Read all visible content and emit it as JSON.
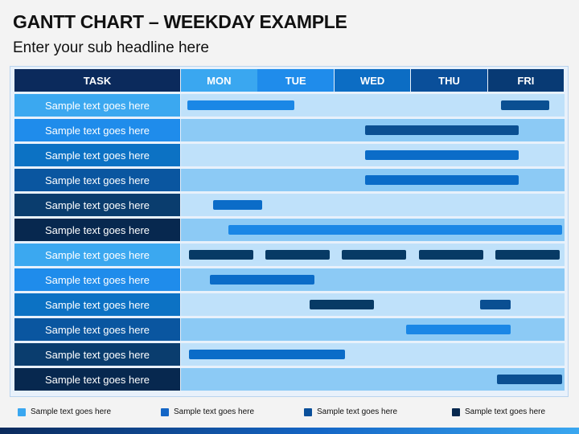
{
  "title": "GANTT CHART – WEEKDAY EXAMPLE",
  "subtitle": "Enter your sub headline here",
  "header": {
    "task": "TASK",
    "days": [
      "MON",
      "TUE",
      "WED",
      "THU",
      "FRI"
    ]
  },
  "colors": {
    "header_days": [
      "#3aa7f0",
      "#1f8ceb",
      "#0c6dc4",
      "#0a4f9a",
      "#083a74"
    ],
    "label_rows": [
      "#3ba8f0",
      "#1f8ceb",
      "#0c72c4",
      "#0a56a0",
      "#0a3d6e",
      "#07284f"
    ],
    "row_light": "#bfe1fa",
    "row_dark": "#8ccaf5",
    "bar_shades": [
      "#1a87e6",
      "#0b6cc8",
      "#0a4f92",
      "#073a65"
    ]
  },
  "tasks": [
    {
      "label": "Sample text goes here",
      "bars": [
        {
          "start": 0.08,
          "end": 1.48,
          "shade": 0
        },
        {
          "start": 4.17,
          "end": 4.8,
          "shade": 2
        }
      ]
    },
    {
      "label": "Sample text goes here",
      "bars": [
        {
          "start": 2.4,
          "end": 4.4,
          "shade": 2
        }
      ]
    },
    {
      "label": "Sample text goes here",
      "bars": [
        {
          "start": 2.4,
          "end": 4.4,
          "shade": 1
        }
      ]
    },
    {
      "label": "Sample text goes here",
      "bars": [
        {
          "start": 2.4,
          "end": 4.4,
          "shade": 1
        }
      ]
    },
    {
      "label": "Sample text goes here",
      "bars": [
        {
          "start": 0.42,
          "end": 1.06,
          "shade": 1
        }
      ]
    },
    {
      "label": "Sample text goes here",
      "bars": [
        {
          "start": 0.62,
          "end": 4.97,
          "shade": 0
        }
      ]
    },
    {
      "label": "Sample text goes here",
      "bars": [
        {
          "start": 0.1,
          "end": 0.94,
          "shade": 3
        },
        {
          "start": 1.1,
          "end": 1.94,
          "shade": 3
        },
        {
          "start": 2.1,
          "end": 2.94,
          "shade": 3
        },
        {
          "start": 3.1,
          "end": 3.94,
          "shade": 3
        },
        {
          "start": 4.1,
          "end": 4.94,
          "shade": 3
        }
      ]
    },
    {
      "label": "Sample text goes here",
      "bars": [
        {
          "start": 0.38,
          "end": 1.74,
          "shade": 1
        }
      ]
    },
    {
      "label": "Sample text goes here",
      "bars": [
        {
          "start": 1.68,
          "end": 2.52,
          "shade": 3
        },
        {
          "start": 3.9,
          "end": 4.3,
          "shade": 2
        }
      ]
    },
    {
      "label": "Sample text goes here",
      "bars": [
        {
          "start": 2.94,
          "end": 4.3,
          "shade": 0
        }
      ]
    },
    {
      "label": "Sample text goes here",
      "bars": [
        {
          "start": 0.1,
          "end": 2.14,
          "shade": 1
        }
      ]
    },
    {
      "label": "Sample text goes here",
      "bars": [
        {
          "start": 4.12,
          "end": 4.97,
          "shade": 2
        }
      ]
    }
  ],
  "legend": [
    {
      "label": "Sample text goes here",
      "color": "#3aa7f0"
    },
    {
      "label": "Sample text goes here",
      "color": "#1466c6"
    },
    {
      "label": "Sample text goes here",
      "color": "#0a4f9a"
    },
    {
      "label": "Sample text goes here",
      "color": "#07284f"
    }
  ]
}
